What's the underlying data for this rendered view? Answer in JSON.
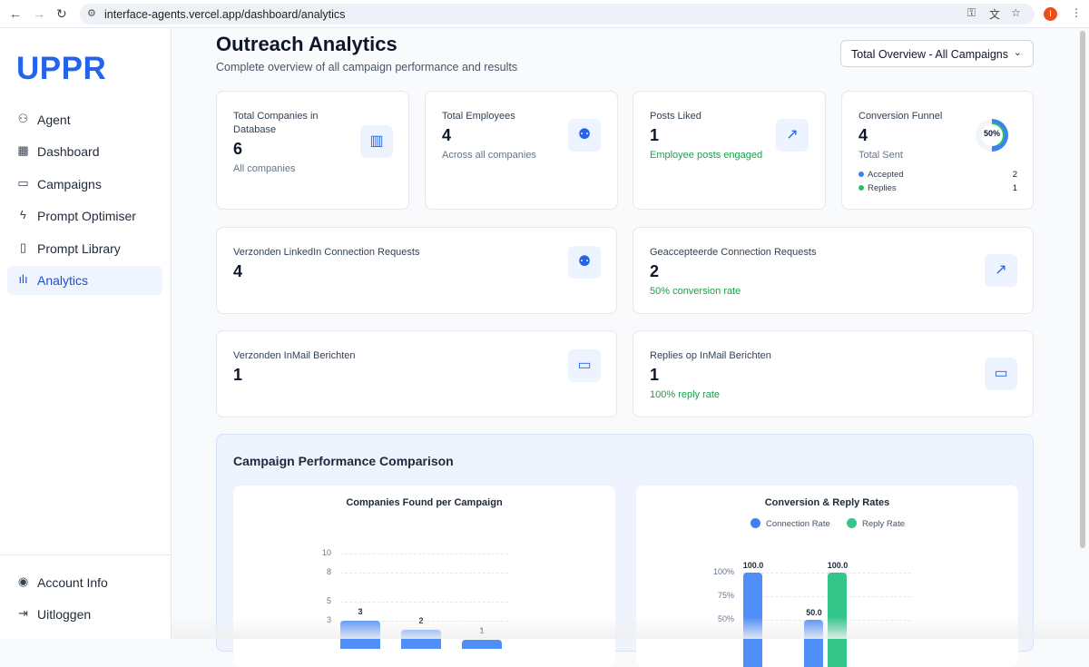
{
  "browser": {
    "url": "interface-agents.vercel.app/dashboard/analytics",
    "profile_initial": "I"
  },
  "sidebar": {
    "logo": "UPPR",
    "items": [
      {
        "label": "Agent",
        "icon": "bot-icon"
      },
      {
        "label": "Dashboard",
        "icon": "grid-icon"
      },
      {
        "label": "Campaigns",
        "icon": "message-icon"
      },
      {
        "label": "Prompt Optimiser",
        "icon": "zap-icon"
      },
      {
        "label": "Prompt Library",
        "icon": "book-icon"
      },
      {
        "label": "Analytics",
        "icon": "bar-chart-icon",
        "active": true
      }
    ],
    "bottom": [
      {
        "label": "Account Info",
        "icon": "user-circle-icon"
      },
      {
        "label": "Uitloggen",
        "icon": "logout-icon"
      }
    ]
  },
  "header": {
    "title": "Outreach Analytics",
    "subtitle": "Complete overview of all campaign performance and results",
    "select": "Total Overview - All Campaigns"
  },
  "stats": {
    "companies": {
      "label": "Total Companies in Database",
      "value": "6",
      "note": "All companies"
    },
    "employees": {
      "label": "Total Employees",
      "value": "4",
      "note": "Across all companies"
    },
    "posts": {
      "label": "Posts Liked",
      "value": "1",
      "note": "Employee posts engaged"
    },
    "funnel": {
      "label": "Conversion Funnel",
      "value": "4",
      "note": "Total Sent",
      "percent": "50%",
      "accepted_label": "Accepted",
      "accepted": "2",
      "replies_label": "Replies",
      "replies": "1"
    },
    "sent_requests": {
      "label": "Verzonden LinkedIn Connection Requests",
      "value": "4"
    },
    "accepted_requests": {
      "label": "Geaccepteerde Connection Requests",
      "value": "2",
      "note": "50% conversion rate"
    },
    "inmail_sent": {
      "label": "Verzonden InMail Berichten",
      "value": "1"
    },
    "inmail_replies": {
      "label": "Replies op InMail Berichten",
      "value": "1",
      "note": "100% reply rate"
    }
  },
  "performance": {
    "title": "Campaign Performance Comparison"
  },
  "colors": {
    "accent": "#2563eb",
    "blue_bar": "#4f8ef7",
    "green_bar": "#34c58a"
  },
  "chart_data": [
    {
      "type": "bar",
      "title": "Companies Found per Campaign",
      "yticks": [
        "10",
        "8",
        "5",
        "3"
      ],
      "ytick_values": [
        10,
        8,
        5,
        3
      ],
      "ylim": [
        0,
        10
      ],
      "values": [
        3,
        2,
        1
      ],
      "value_labels": [
        "3",
        "2",
        "1"
      ]
    },
    {
      "type": "bar",
      "title": "Conversion & Reply Rates",
      "yticks": [
        "100%",
        "75%",
        "50%"
      ],
      "ytick_values": [
        100,
        75,
        50
      ],
      "ylim": [
        0,
        100
      ],
      "series": [
        {
          "name": "Connection Rate",
          "values": [
            100,
            50
          ],
          "labels": [
            "100.0",
            "50.0"
          ]
        },
        {
          "name": "Reply Rate",
          "values": [
            0,
            100
          ],
          "labels": [
            "",
            "100.0"
          ]
        }
      ]
    }
  ]
}
